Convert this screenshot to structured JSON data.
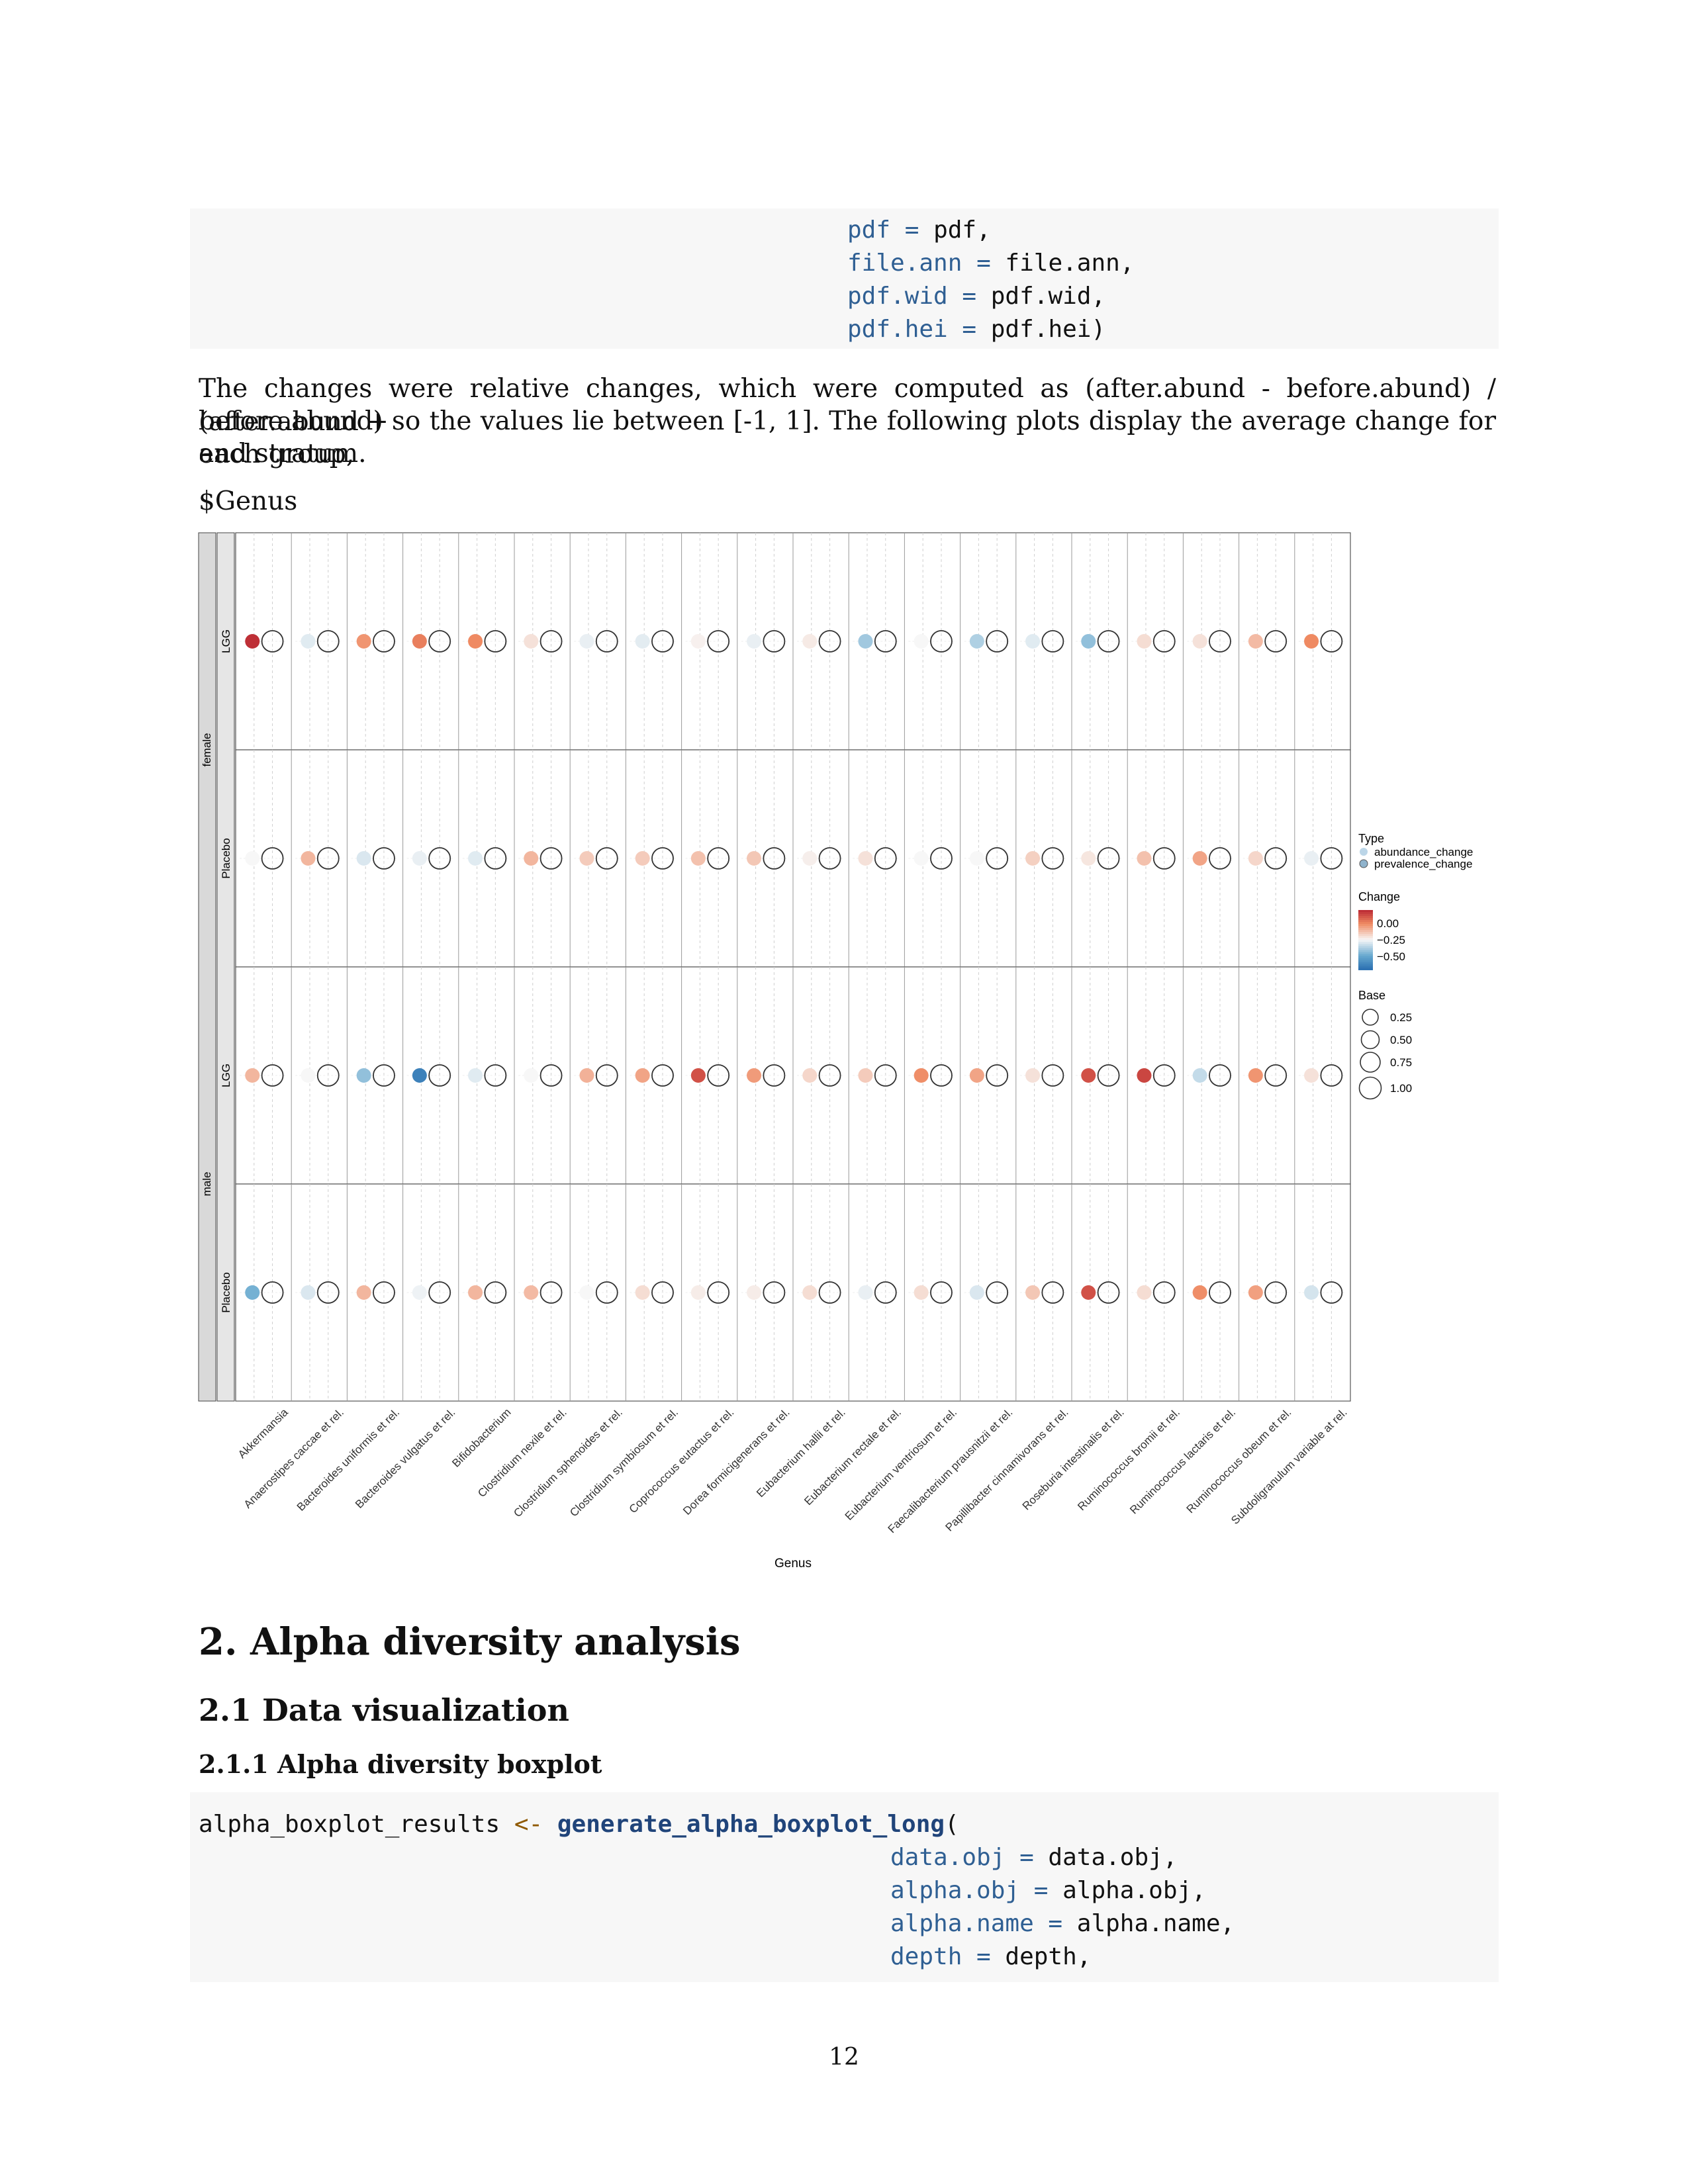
{
  "code_top": {
    "lines": [
      {
        "arg": "pdf",
        "op": " = ",
        "val": "pdf,"
      },
      {
        "arg": "file.ann",
        "op": " = ",
        "val": "file.ann,"
      },
      {
        "arg": "pdf.wid",
        "op": " = ",
        "val": "pdf.wid,"
      },
      {
        "arg": "pdf.hei",
        "op": " = ",
        "val": "pdf.hei)"
      }
    ]
  },
  "paragraph": {
    "line1": "The changes were relative changes, which were computed as (after.abund - before.abund) / (after.abund +",
    "line2": "before.abund) so the values lie between [-1, 1]. The following plots display the average change for each group,",
    "line3": "and stratum."
  },
  "genus_heading": "$Genus",
  "chart_data": {
    "type": "scatter",
    "title": "",
    "xlabel": "Genus",
    "ylabel": "",
    "categories": [
      "Akkermansia",
      "Anaerostipes caccae et rel.",
      "Bacteroides uniformis et rel.",
      "Bacteroides vulgatus et rel.",
      "Bifidobacterium",
      "Clostridium nexile et rel.",
      "Clostridium sphenoides et rel.",
      "Clostridium symbiosum et rel.",
      "Coprococcus eutactus et rel.",
      "Dorea formicigenerans et rel.",
      "Eubacterium hallii et rel.",
      "Eubacterium rectale et rel.",
      "Eubacterium ventriosum et rel.",
      "Faecalibacterium prausnitzii et rel.",
      "Papillibacter cinnamivorans et rel.",
      "Roseburia intestinalis et rel.",
      "Ruminococcus bromii et rel.",
      "Ruminococcus lactaris et rel.",
      "Ruminococcus obeum et rel.",
      "Subdoligranulum variable at rel."
    ],
    "strata": [
      "female",
      "male"
    ],
    "groups": [
      "LGG",
      "Placebo"
    ],
    "panels": [
      {
        "stratum": "female",
        "group": "LGG",
        "abundance_change": [
          0.9,
          -0.08,
          0.45,
          0.55,
          0.5,
          0.1,
          -0.05,
          -0.07,
          0.03,
          -0.05,
          0.06,
          -0.3,
          0.0,
          -0.25,
          -0.08,
          -0.35,
          0.12,
          0.1,
          0.28,
          0.5
        ]
      },
      {
        "stratum": "female",
        "group": "Placebo",
        "abundance_change": [
          0.0,
          0.3,
          -0.1,
          -0.05,
          -0.08,
          0.3,
          0.2,
          0.2,
          0.25,
          0.22,
          0.04,
          0.1,
          0.0,
          0.0,
          0.18,
          0.08,
          0.25,
          0.38,
          0.15,
          -0.05
        ]
      },
      {
        "stratum": "male",
        "group": "LGG",
        "abundance_change": [
          0.3,
          0.0,
          -0.35,
          -0.8,
          -0.08,
          0.0,
          0.32,
          0.38,
          0.75,
          0.42,
          0.15,
          0.2,
          0.48,
          0.38,
          0.1,
          0.75,
          0.8,
          -0.18,
          0.45,
          0.1
        ]
      },
      {
        "stratum": "male",
        "group": "Placebo",
        "abundance_change": [
          -0.45,
          -0.1,
          0.3,
          -0.03,
          0.3,
          0.28,
          0.0,
          0.12,
          0.05,
          0.05,
          0.12,
          -0.05,
          0.12,
          -0.1,
          0.22,
          0.75,
          0.12,
          0.48,
          0.4,
          -0.12
        ]
      }
    ],
    "prevalence_change": "all values near 0 (hollow circles)",
    "legend": {
      "placement": "right",
      "type_title": "Type",
      "type_entries": [
        "abundance_change",
        "prevalence_change"
      ],
      "change_title": "Change",
      "change_ticks": [
        "0.00",
        "−0.25",
        "−0.50"
      ],
      "base_title": "Base",
      "base_entries": [
        "0.25",
        "0.50",
        "0.75",
        "1.00"
      ]
    },
    "grid": true,
    "colors": {
      "positive": "#b2182b",
      "neutral": "#f7f7f7",
      "negative": "#2166ac"
    }
  },
  "heading1": "2. Alpha diversity analysis",
  "heading2": "2.1 Data visualization",
  "heading3": "2.1.1 Alpha diversity boxplot",
  "code_bottom": {
    "first_var": "alpha_boxplot_results",
    "first_assign": " <- ",
    "first_fn": "generate_alpha_boxplot_long",
    "first_paren": "(",
    "lines": [
      {
        "arg": "data.obj",
        "op": " = ",
        "val": "data.obj,"
      },
      {
        "arg": "alpha.obj",
        "op": " = ",
        "val": "alpha.obj,"
      },
      {
        "arg": "alpha.name",
        "op": " = ",
        "val": "alpha.name,"
      },
      {
        "arg": "depth",
        "op": " = ",
        "val": "depth,"
      }
    ]
  },
  "page_number": "12"
}
